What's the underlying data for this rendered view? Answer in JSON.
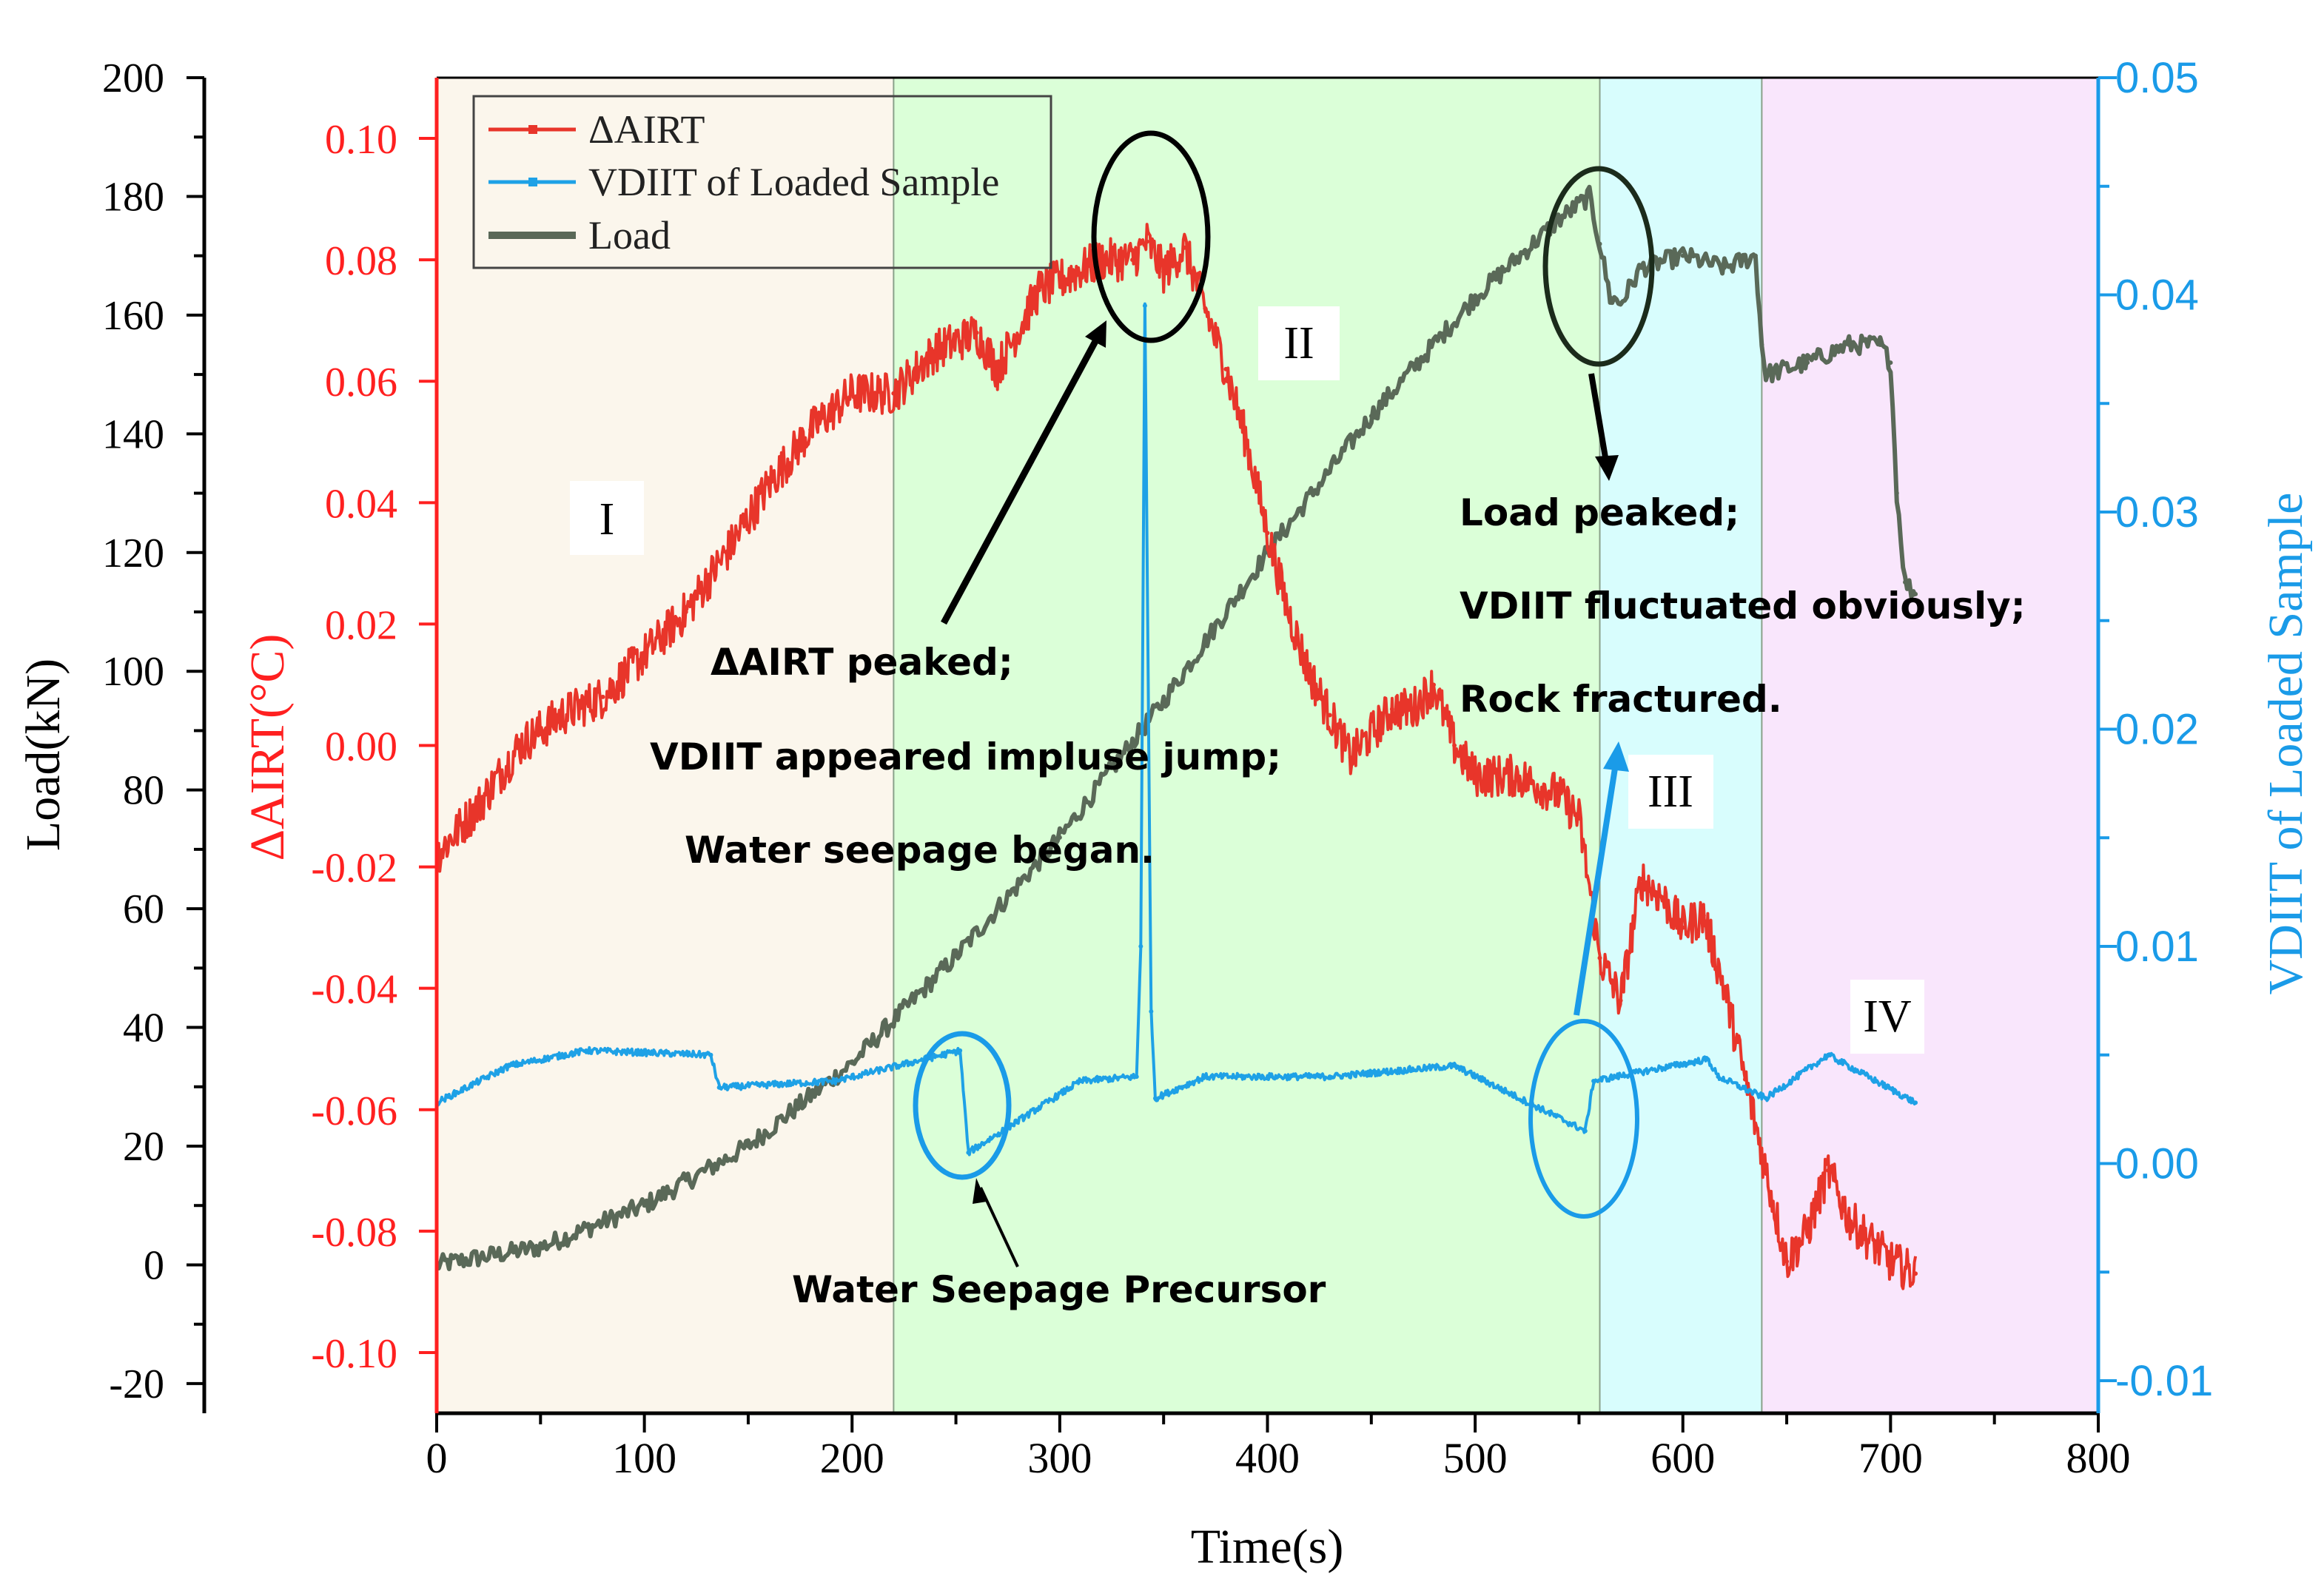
{
  "chart_data": {
    "type": "line",
    "x": [
      0,
      50,
      100,
      150,
      200,
      250,
      300,
      330,
      340,
      350,
      370,
      400,
      430,
      450,
      480,
      500,
      530,
      550,
      560,
      570,
      580,
      600,
      620,
      640,
      660,
      680,
      700,
      712
    ],
    "xlabel": "Time(s)",
    "xlim": [
      0,
      800
    ],
    "xticks": [
      "0",
      "100",
      "200",
      "300",
      "400",
      "500",
      "600",
      "700",
      "800"
    ],
    "axes": {
      "left_load": {
        "label": "Load(kN)",
        "ylim": [
          -25,
          200
        ],
        "ticks": [
          "-20",
          "0",
          "20",
          "40",
          "60",
          "80",
          "100",
          "120",
          "140",
          "160",
          "180",
          "200"
        ],
        "color": "#000000"
      },
      "left_aairt": {
        "label": "ΔAIRT(°C)",
        "ylim": [
          -0.11,
          0.11
        ],
        "ticks": [
          "-0.10",
          "-0.08",
          "-0.06",
          "-0.04",
          "-0.02",
          "0.00",
          "0.02",
          "0.04",
          "0.06",
          "0.08",
          "0.10"
        ],
        "color": "#ff2020"
      },
      "right_vdiit": {
        "label": "VDIIT of Loaded Sample",
        "ylim": [
          -0.0115,
          0.05
        ],
        "ticks": [
          "-0.01",
          "0.00",
          "0.01",
          "0.02",
          "0.03",
          "0.04",
          "0.05"
        ],
        "color": "#1a9be8"
      }
    },
    "series": [
      {
        "name": "ΔAIRT",
        "axis": "left_aairt",
        "color": "#e8352a",
        "x": [
          0,
          20,
          40,
          60,
          80,
          100,
          120,
          140,
          160,
          180,
          200,
          220,
          240,
          260,
          270,
          290,
          320,
          335,
          342,
          350,
          360,
          370,
          380,
          390,
          400,
          410,
          420,
          430,
          440,
          460,
          470,
          480,
          490,
          500,
          520,
          540,
          550,
          560,
          570,
          580,
          590,
          600,
          610,
          620,
          630,
          640,
          650,
          660,
          670,
          680,
          700,
          712
        ],
        "values": [
          -0.018,
          -0.01,
          0.0,
          0.005,
          0.008,
          0.015,
          0.022,
          0.032,
          0.043,
          0.052,
          0.058,
          0.058,
          0.065,
          0.068,
          0.062,
          0.075,
          0.08,
          0.08,
          0.083,
          0.078,
          0.082,
          0.072,
          0.062,
          0.05,
          0.035,
          0.022,
          0.012,
          0.005,
          -0.002,
          0.006,
          0.006,
          0.01,
          0.0,
          -0.005,
          -0.005,
          -0.008,
          -0.012,
          -0.035,
          -0.042,
          -0.022,
          -0.025,
          -0.03,
          -0.028,
          -0.04,
          -0.055,
          -0.07,
          -0.085,
          -0.08,
          -0.07,
          -0.078,
          -0.085,
          -0.087
        ]
      },
      {
        "name": "VDIIT of Loaded Sample",
        "axis": "right_vdiit",
        "color": "#1ea1e6",
        "x": [
          0,
          35,
          72,
          132,
          136,
          192,
          252,
          256,
          310,
          337,
          339,
          341,
          344,
          346,
          370,
          430,
          490,
          553,
          557,
          612,
          617,
          640,
          670,
          712
        ],
        "values": [
          0.0028,
          0.0045,
          0.0052,
          0.005,
          0.0035,
          0.0038,
          0.0052,
          0.0005,
          0.0038,
          0.004,
          0.01,
          0.0395,
          0.007,
          0.003,
          0.004,
          0.004,
          0.0045,
          0.0015,
          0.0038,
          0.0048,
          0.004,
          0.003,
          0.005,
          0.0028
        ]
      },
      {
        "name": "Load",
        "axis": "left_load",
        "color": "#5a6958",
        "x": [
          0,
          50,
          100,
          150,
          200,
          250,
          300,
          350,
          400,
          450,
          500,
          540,
          555,
          560,
          565,
          570,
          580,
          600,
          620,
          635,
          638,
          640,
          660,
          680,
          695,
          700,
          703,
          707,
          712
        ],
        "values": [
          0,
          3,
          10,
          20,
          34,
          52,
          72,
          95,
          120,
          143,
          163,
          176,
          180,
          172,
          163,
          162,
          168,
          170,
          168,
          170,
          155,
          150,
          152,
          155,
          155,
          152,
          130,
          115,
          113
        ]
      }
    ],
    "legend": {
      "position": "top-left",
      "entries": [
        "ΔAIRT",
        "VDIIT of Loaded Sample",
        "Load"
      ]
    },
    "regions": [
      {
        "name": "I",
        "from": 0,
        "to": 220,
        "color": "#fbf6ec"
      },
      {
        "name": "II",
        "from": 220,
        "to": 560,
        "color": "#dbffd8"
      },
      {
        "name": "III",
        "from": 560,
        "to": 638,
        "color": "#d8fdfd"
      },
      {
        "name": "IV",
        "from": 638,
        "to": 800,
        "color": "#f9e6fc"
      }
    ],
    "annotations": [
      {
        "lines": [
          "ΔAIRT peaked;",
          "VDIIT appeared impluse jump;",
          "Water seepage began."
        ]
      },
      {
        "lines": [
          "Load peaked;",
          "VDIIT fluctuated obviously;",
          "Rock fractured."
        ]
      },
      {
        "lines": [
          "Water Seepage Precursor"
        ]
      }
    ],
    "phase_labels": [
      "I",
      "II",
      "III",
      "IV"
    ]
  }
}
